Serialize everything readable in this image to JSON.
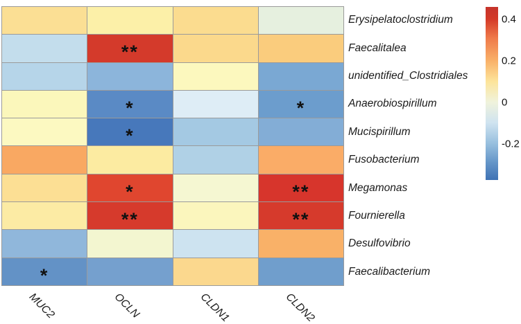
{
  "figure": {
    "background": "#ffffff",
    "grid_line_color": "#9a9a9a",
    "label_color": "#1a1a1a",
    "star_color": "#111111"
  },
  "chart_data": {
    "type": "heatmap",
    "title": "",
    "columns": [
      "MUC2",
      "OCLN",
      "CLDN1",
      "CLDN2"
    ],
    "rows": [
      "Erysipelatoclostridium",
      "Faecalitalea",
      "unidentified_Clostridiales",
      "Anaerobiospirillum",
      "Mucispirillum",
      "Fusobacterium",
      "Megamonas",
      "Fournierella",
      "Desulfovibrio",
      "Faecalibacterium"
    ],
    "values": [
      [
        0.16,
        0.09,
        0.17,
        0.01
      ],
      [
        -0.14,
        0.42,
        0.18,
        0.22
      ],
      [
        -0.17,
        -0.25,
        0.05,
        -0.27
      ],
      [
        0.05,
        -0.33,
        -0.07,
        -0.29
      ],
      [
        0.04,
        -0.36,
        -0.2,
        -0.26
      ],
      [
        0.3,
        0.1,
        -0.18,
        0.29
      ],
      [
        0.16,
        0.38,
        0.03,
        0.42
      ],
      [
        0.11,
        0.42,
        0.05,
        0.42
      ],
      [
        -0.24,
        0.03,
        -0.11,
        0.28
      ],
      [
        -0.31,
        -0.28,
        0.18,
        -0.29
      ]
    ],
    "significance": [
      [
        "",
        "",
        "",
        ""
      ],
      [
        "",
        "**",
        "",
        ""
      ],
      [
        "",
        "",
        "",
        ""
      ],
      [
        "",
        "*",
        "",
        "*"
      ],
      [
        "",
        "*",
        "",
        ""
      ],
      [
        "",
        "",
        "",
        ""
      ],
      [
        "",
        "*",
        "",
        "**"
      ],
      [
        "",
        "**",
        "",
        "**"
      ],
      [
        "",
        "",
        "",
        ""
      ],
      [
        "*",
        "",
        "",
        ""
      ]
    ],
    "cell_colors": [
      [
        "#FBDF94",
        "#FCF0A8",
        "#FBDC8F",
        "#E6F0DF"
      ],
      [
        "#C3DDEC",
        "#D43A2B",
        "#FBD98C",
        "#FACC7D"
      ],
      [
        "#B6D5E9",
        "#8CB5DB",
        "#FCF8BE",
        "#7AA8D3"
      ],
      [
        "#FBF7BB",
        "#5A8AC5",
        "#DEEDF6",
        "#6C9DCD"
      ],
      [
        "#FCF9C1",
        "#4778BB",
        "#A4C9E3",
        "#83ADD6"
      ],
      [
        "#F9A862",
        "#FCEBA1",
        "#B0D1E6",
        "#FAAC67"
      ],
      [
        "#FCDF94",
        "#E0462F",
        "#F5F7D2",
        "#D7352C"
      ],
      [
        "#FCEBA4",
        "#D63A2C",
        "#FBF6BD",
        "#D63A2C"
      ],
      [
        "#90B7DB",
        "#F3F6D0",
        "#CDE3F0",
        "#F9B168"
      ],
      [
        "#6392C6",
        "#75A0CE",
        "#FBD88E",
        "#709ECC"
      ]
    ],
    "legend_position": "right",
    "colorbar": {
      "ticks": [
        "0.4",
        "0.2",
        "0",
        "-0.2"
      ],
      "value_range": [
        -0.37,
        0.46
      ],
      "gradient_stops": [
        "#C5332B 0%",
        "#D43A28 7%",
        "#EF7A4A 18%",
        "#F9B068 31%",
        "#FDE49A 43%",
        "#F0F3DC 55%",
        "#CFE3F0 67%",
        "#97BFDE 79%",
        "#6495C8 90%",
        "#3F72B4 100%"
      ]
    }
  }
}
